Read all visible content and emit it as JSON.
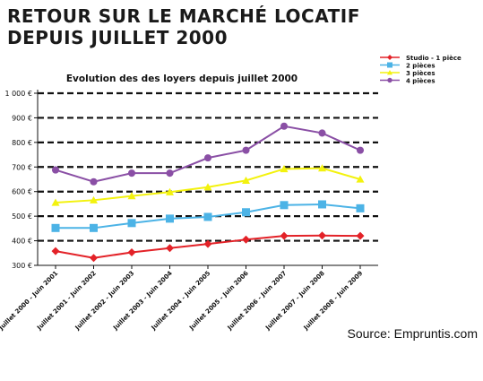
{
  "header": {
    "title_line1": "RETOUR SUR LE MARCHÉ LOCATIF",
    "title_line2": "DEPUIS JUILLET 2000"
  },
  "source": "Source: Empruntis.com",
  "chart_data": {
    "type": "line",
    "title": "Evolution des des loyers depuis juillet 2000",
    "xlabel": "",
    "ylabel": "",
    "ylim": [
      300,
      1000
    ],
    "yticks": [
      300,
      400,
      500,
      600,
      700,
      800,
      900,
      1000
    ],
    "ytick_labels": [
      "300 €",
      "400 €",
      "500 €",
      "600 €",
      "700 €",
      "800 €",
      "900 €",
      "1 000 €"
    ],
    "grid": "horizontal dashed",
    "legend_position": "top-right",
    "categories": [
      "Juillet 2000 - Juin 2001",
      "Juillet 2001 - Juin 2002",
      "Juillet 2002 - Juin 2003",
      "Juillet 2003 - Juin 2004",
      "Juillet 2004 - Juin 2005",
      "Juillet 2005 - Juin 2006",
      "Juillet 2006 - Juin 2007",
      "Juillet 2007 - Juin 2008",
      "Juillet 2008 - Juin 2009"
    ],
    "series": [
      {
        "name": "Studio - 1 pièce",
        "color": "#e32228",
        "marker": "diamond",
        "values": [
          358,
          330,
          353,
          370,
          387,
          405,
          420,
          421,
          420
        ]
      },
      {
        "name": "2 pièces",
        "color": "#4cb3e6",
        "marker": "square",
        "values": [
          452,
          452,
          472,
          490,
          497,
          516,
          545,
          548,
          532
        ]
      },
      {
        "name": "3 pièces",
        "color": "#f3f20e",
        "marker": "triangle",
        "values": [
          555,
          565,
          582,
          598,
          618,
          645,
          692,
          695,
          650
        ]
      },
      {
        "name": "4 pièces",
        "color": "#8a4fa5",
        "marker": "circle",
        "values": [
          688,
          640,
          675,
          675,
          737,
          768,
          866,
          838,
          768
        ]
      }
    ]
  }
}
